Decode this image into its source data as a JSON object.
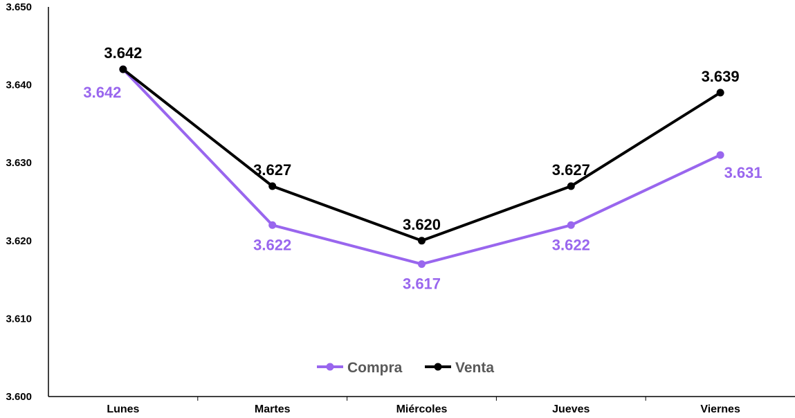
{
  "chart_data": {
    "type": "line",
    "title": "",
    "xlabel": "",
    "ylabel": "",
    "categories": [
      "Lunes",
      "Martes",
      "Miércoles",
      "Jueves",
      "Viernes"
    ],
    "ylim": [
      3.6,
      3.65
    ],
    "yticks": [
      3.6,
      3.61,
      3.62,
      3.63,
      3.64,
      3.65
    ],
    "ytick_labels": [
      "3.600",
      "3.610",
      "3.620",
      "3.630",
      "3.640",
      "3.650"
    ],
    "grid": false,
    "legend_position": "bottom-center",
    "series": [
      {
        "name": "Compra",
        "color": "#9966ee",
        "values": [
          3.642,
          3.622,
          3.617,
          3.622,
          3.631
        ],
        "labels": [
          "3.642",
          "3.622",
          "3.617",
          "3.622",
          "3.631"
        ]
      },
      {
        "name": "Venta",
        "color": "#000000",
        "values": [
          3.642,
          3.627,
          3.62,
          3.627,
          3.639
        ],
        "labels": [
          "3.642",
          "3.627",
          "3.620",
          "3.627",
          "3.639"
        ]
      }
    ]
  }
}
